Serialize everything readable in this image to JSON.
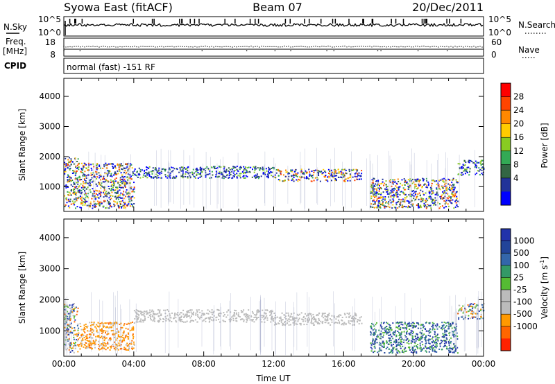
{
  "header": {
    "station": "Syowa East (fitACF)",
    "beam": "Beam 07",
    "date": "20/Dec/2011"
  },
  "panels": {
    "nsky": {
      "label_left": "N.Sky",
      "label_right": "N.Search",
      "ticks_left": [
        "10^5",
        "10^0"
      ],
      "ticks_right": [
        "10^5",
        "10^0"
      ]
    },
    "freq": {
      "label_left_1": "Freq.",
      "label_left_2": "[MHz]",
      "label_right": "Nave",
      "ticks_left": [
        "18",
        "8"
      ],
      "ticks_right": [
        "60",
        "0"
      ]
    },
    "cpid": {
      "label": "CPID",
      "value": "normal (fast) -151 RF"
    }
  },
  "chart_data": [
    {
      "type": "heatmap",
      "name": "power",
      "ylabel": "Slant Range [km]",
      "xlabel": "",
      "xlim": [
        0,
        24
      ],
      "ylim": [
        180,
        4600
      ],
      "y_ticks": [
        1000,
        2000,
        3000,
        4000
      ],
      "colorbar": {
        "label": "Power [dB]",
        "ticks": [
          "28",
          "24",
          "20",
          "16",
          "12",
          "8",
          "4"
        ],
        "colors": [
          "#ff0000",
          "#ff4400",
          "#ff8800",
          "#ffcc00",
          "#88cc22",
          "#33aa55",
          "#336644",
          "#223399",
          "#0000ff"
        ]
      },
      "regions": [
        {
          "t": [
            0.0,
            0.8
          ],
          "r": [
            300,
            2000
          ],
          "level": "mixed"
        },
        {
          "t": [
            0.8,
            4.0
          ],
          "r": [
            300,
            1800
          ],
          "level": "mixed"
        },
        {
          "t": [
            4.0,
            12.0
          ],
          "r": [
            1300,
            1700
          ],
          "level": "low"
        },
        {
          "t": [
            12.0,
            17.0
          ],
          "r": [
            1200,
            1600
          ],
          "level": "mixed"
        },
        {
          "t": [
            17.5,
            22.5
          ],
          "r": [
            300,
            1300
          ],
          "level": "mixed"
        },
        {
          "t": [
            22.5,
            24.0
          ],
          "r": [
            1400,
            1900
          ],
          "level": "low"
        }
      ]
    },
    {
      "type": "heatmap",
      "name": "velocity",
      "ylabel": "Slant Range [km]",
      "xlabel": "Time UT",
      "xlim": [
        0,
        24
      ],
      "ylim": [
        180,
        4600
      ],
      "x_ticks": [
        "00:00",
        "04:00",
        "08:00",
        "12:00",
        "16:00",
        "20:00",
        "00:00"
      ],
      "y_ticks": [
        1000,
        2000,
        3000,
        4000
      ],
      "colorbar": {
        "label": "Velocity [m s",
        "label_sup": "-1",
        "label_end": "]",
        "ticks": [
          "1000",
          "500",
          "100",
          "25",
          "-25",
          "-100",
          "-500",
          "-1000"
        ],
        "colors": [
          "#2233aa",
          "#224499",
          "#3366aa",
          "#339966",
          "#55bb33",
          "#bbbbbb",
          "#bbbbbb",
          "#ff9900",
          "#ff6600",
          "#ff2200"
        ]
      },
      "regions": [
        {
          "t": [
            0.0,
            0.8
          ],
          "r": [
            300,
            1900
          ],
          "level": "mixed"
        },
        {
          "t": [
            0.8,
            4.0
          ],
          "r": [
            400,
            1300
          ],
          "level": "negative"
        },
        {
          "t": [
            4.0,
            12.0
          ],
          "r": [
            1300,
            1700
          ],
          "level": "ground"
        },
        {
          "t": [
            12.0,
            17.0
          ],
          "r": [
            1200,
            1600
          ],
          "level": "ground"
        },
        {
          "t": [
            17.5,
            22.5
          ],
          "r": [
            300,
            1300
          ],
          "level": "positive"
        },
        {
          "t": [
            22.5,
            24.0
          ],
          "r": [
            1400,
            1900
          ],
          "level": "mixed"
        }
      ]
    }
  ]
}
